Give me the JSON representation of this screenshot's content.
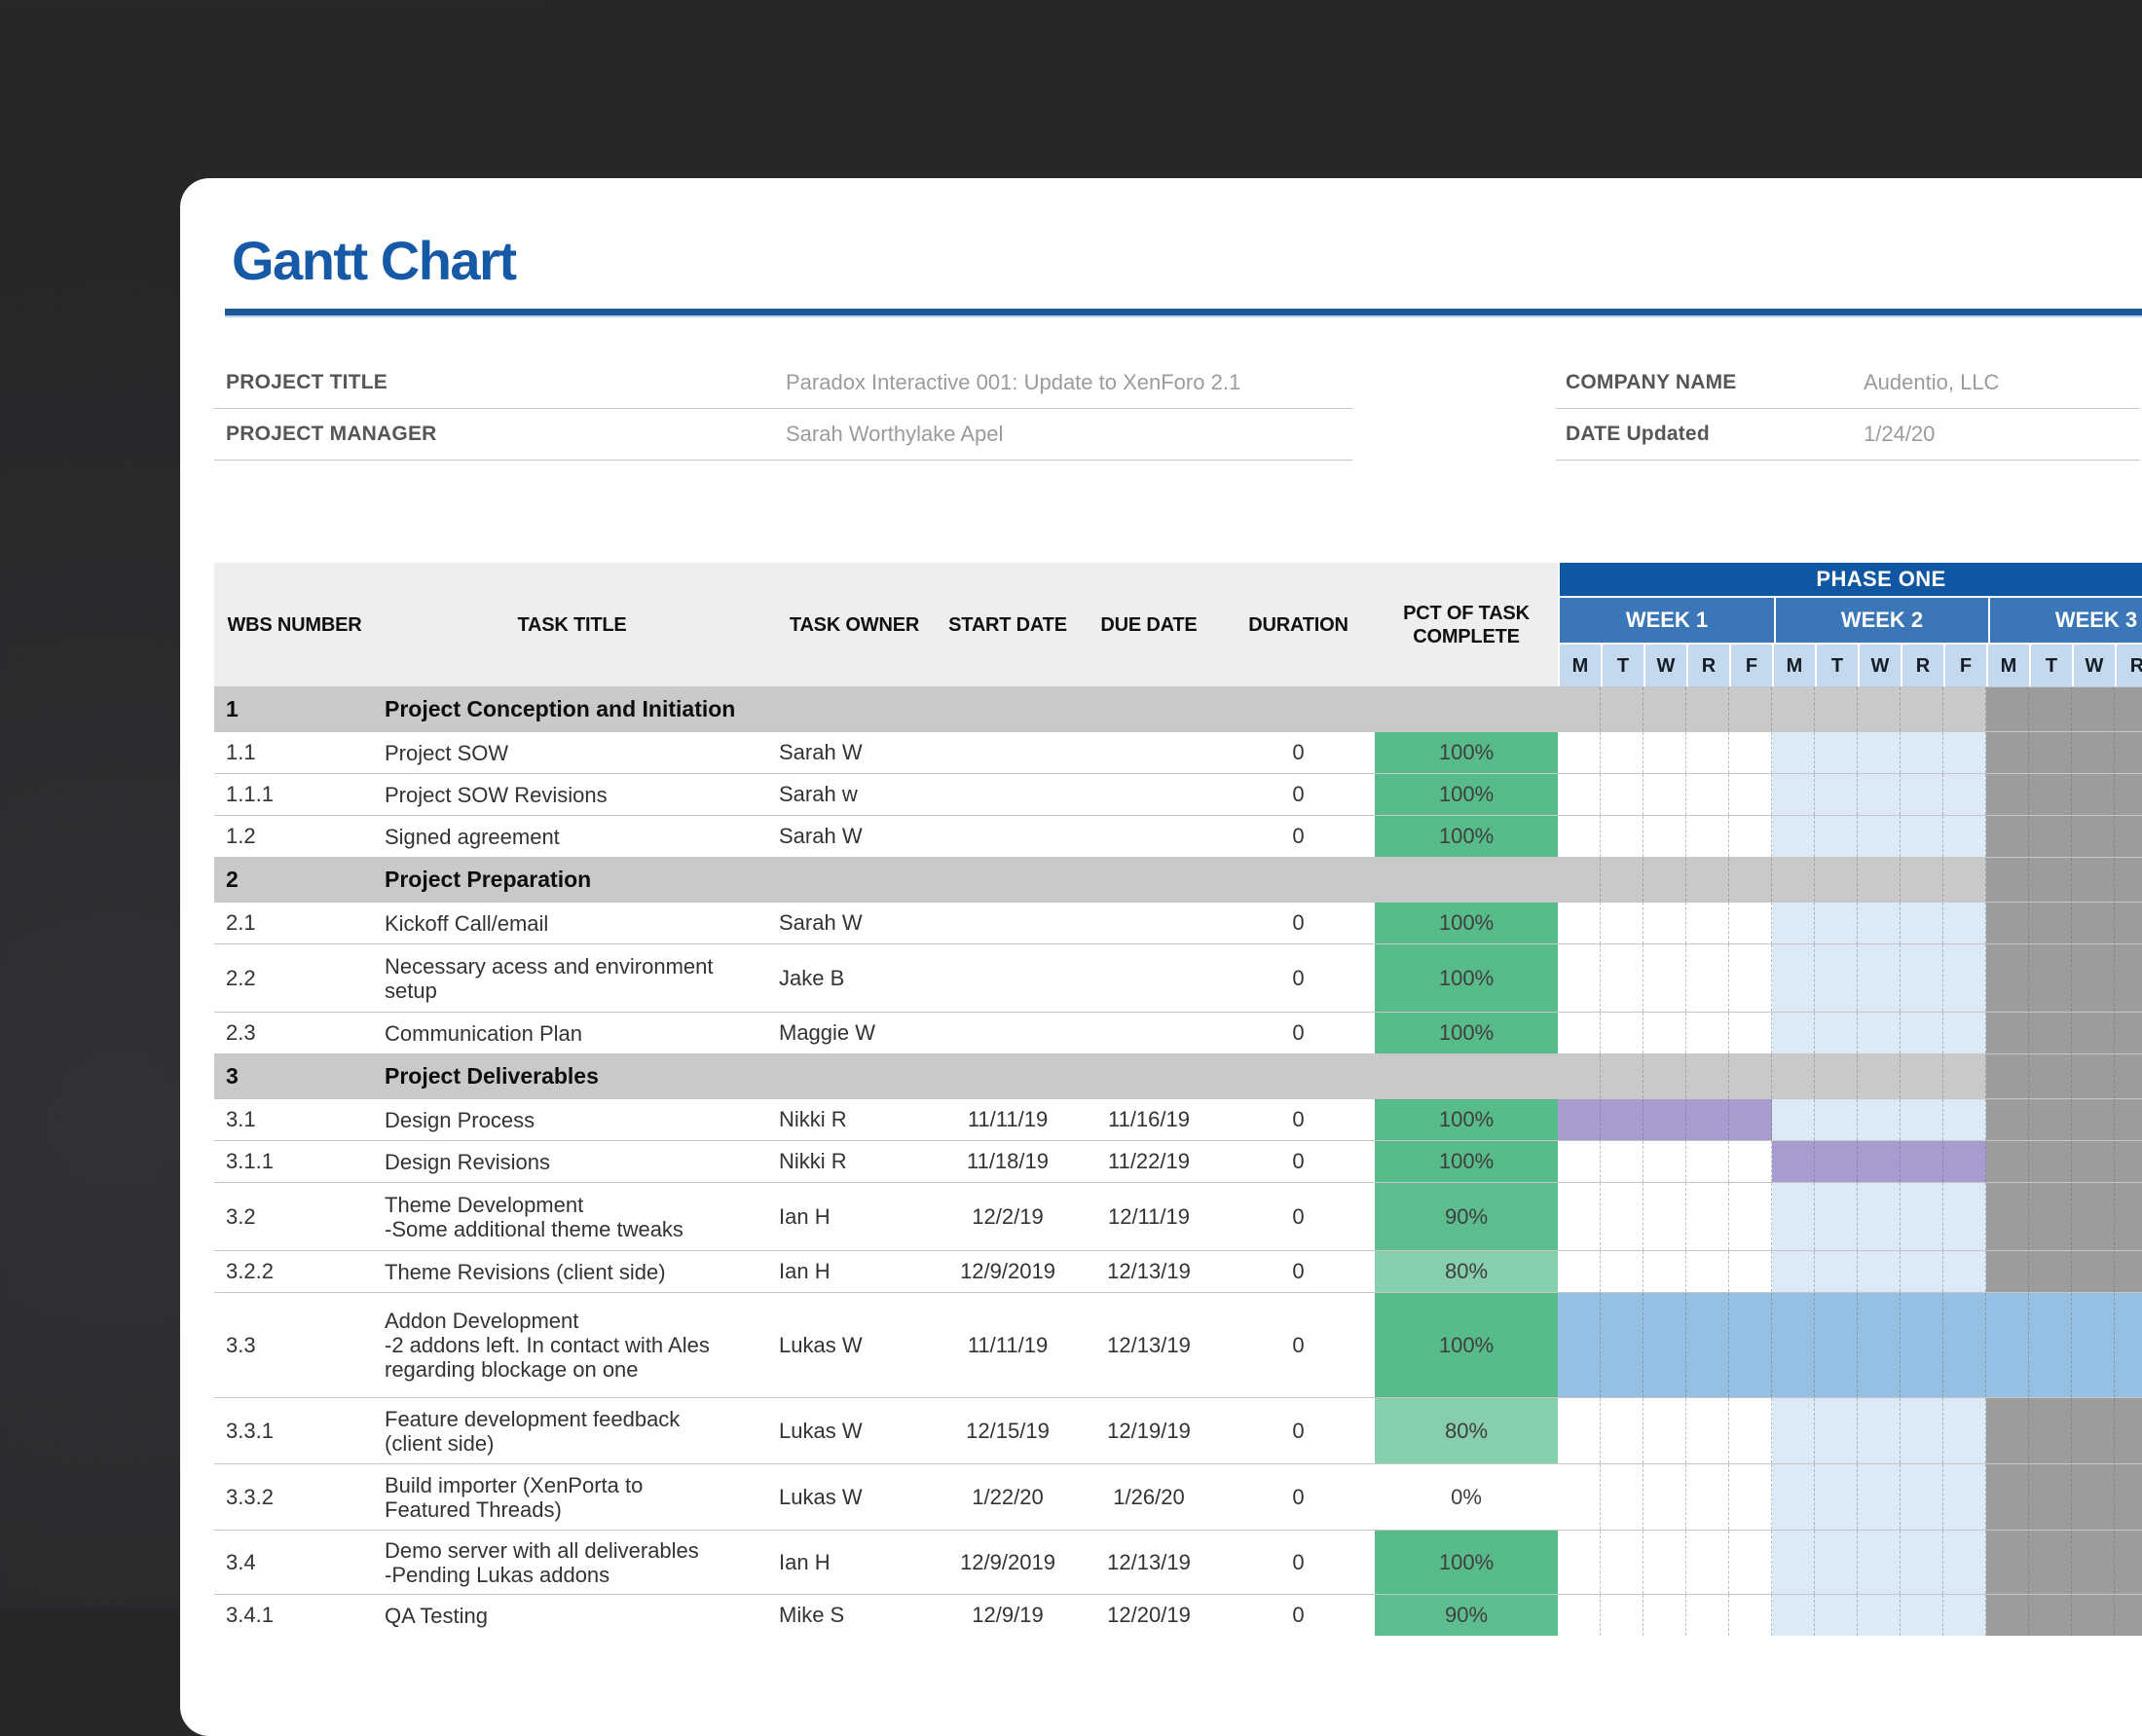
{
  "page": {
    "heading": "Gantt Chart"
  },
  "colors": {
    "heading_blue": "#1659a6",
    "rule_blue": "#1c5899",
    "phase_bg": "#0f57a2",
    "week_bg": "#3b76b7",
    "day_bg": "#c5d9ee",
    "header_bg": "#eeeeee",
    "section_bg": "#c9c9c9",
    "pct_green_full": "#57bb8a",
    "pct_green_light": "#87ceac",
    "gantt_week_band": "#dce9f6",
    "gantt_dim_gray": "#9c9c9c",
    "gantt_purple": "#a89bd0",
    "gantt_blue": "#94c1e3"
  },
  "meta": {
    "left": [
      {
        "label": "PROJECT TITLE",
        "value": "Paradox Interactive 001: Update to XenForo 2.1"
      },
      {
        "label": "PROJECT MANAGER",
        "value": "Sarah Worthylake Apel"
      }
    ],
    "right": [
      {
        "label": "COMPANY NAME",
        "value": "Audentio, LLC"
      },
      {
        "label": "DATE Updated",
        "value": "1/24/20"
      }
    ]
  },
  "gantt": {
    "phase_label": "PHASE ONE",
    "weeks": [
      "WEEK 1",
      "WEEK 2",
      "WEEK 3"
    ],
    "days": [
      "M",
      "T",
      "W",
      "R",
      "F"
    ],
    "palette": {
      "white": "#ffffff",
      "band": "#dce9f6",
      "dim": "#9c9c9c",
      "purple": "#a89bd0",
      "blue": "#94c1e3",
      "section": "#c9c9c9",
      "full": "#57bb8a",
      "high": "#5dbd8e",
      "mid": "#87ceac",
      "none": "#ffffff"
    }
  },
  "table": {
    "columns": [
      "WBS NUMBER",
      "TASK TITLE",
      "TASK OWNER",
      "START DATE",
      "DUE DATE",
      "DURATION",
      "PCT OF TASK COMPLETE"
    ],
    "rows": [
      {
        "type": "section",
        "wbs": "1",
        "title": "Project Conception and Initiation",
        "h": 46,
        "gantt": [
          "section",
          "section",
          "dim"
        ]
      },
      {
        "type": "task",
        "wbs": "1.1",
        "title": "Project SOW",
        "owner": "Sarah W",
        "start": "",
        "due": "",
        "duration": "0",
        "pct": "100%",
        "pct_level": "full",
        "h": 43,
        "gantt": [
          "white",
          "band",
          "dim"
        ]
      },
      {
        "type": "task",
        "wbs": "1.1.1",
        "title": "Project SOW Revisions",
        "owner": "Sarah w",
        "start": "",
        "due": "",
        "duration": "0",
        "pct": "100%",
        "pct_level": "full",
        "h": 43,
        "gantt": [
          "white",
          "band",
          "dim"
        ]
      },
      {
        "type": "task",
        "wbs": "1.2",
        "title": "Signed agreement",
        "owner": "Sarah W",
        "start": "",
        "due": "",
        "duration": "0",
        "pct": "100%",
        "pct_level": "full",
        "h": 43,
        "gantt": [
          "white",
          "band",
          "dim"
        ]
      },
      {
        "type": "section",
        "wbs": "2",
        "title": "Project Preparation",
        "h": 46,
        "gantt": [
          "section",
          "section",
          "dim"
        ]
      },
      {
        "type": "task",
        "wbs": "2.1",
        "title": "Kickoff Call/email",
        "owner": "Sarah W",
        "start": "",
        "due": "",
        "duration": "0",
        "pct": "100%",
        "pct_level": "full",
        "h": 43,
        "gantt": [
          "white",
          "band",
          "dim"
        ]
      },
      {
        "type": "task",
        "wbs": "2.2",
        "title": [
          "Necessary acess and environment",
          "setup"
        ],
        "owner": "Jake B",
        "start": "",
        "due": "",
        "duration": "0",
        "pct": "100%",
        "pct_level": "full",
        "h": 70,
        "gantt": [
          "white",
          "band",
          "dim"
        ]
      },
      {
        "type": "task",
        "wbs": "2.3",
        "title": "Communication Plan",
        "owner": "Maggie W",
        "start": "",
        "due": "",
        "duration": "0",
        "pct": "100%",
        "pct_level": "full",
        "h": 43,
        "gantt": [
          "white",
          "band",
          "dim"
        ]
      },
      {
        "type": "section",
        "wbs": "3",
        "title": "Project Deliverables",
        "h": 46,
        "gantt": [
          "section",
          "section",
          "dim"
        ]
      },
      {
        "type": "task",
        "wbs": "3.1",
        "title": "Design Process",
        "owner": "Nikki R",
        "start": "11/11/19",
        "due": "11/16/19",
        "duration": "0",
        "pct": "100%",
        "pct_level": "full",
        "h": 43,
        "gantt": [
          "purple",
          "band",
          "dim"
        ]
      },
      {
        "type": "task",
        "wbs": "3.1.1",
        "title": "Design Revisions",
        "owner": "Nikki R",
        "start": "11/18/19",
        "due": "11/22/19",
        "duration": "0",
        "pct": "100%",
        "pct_level": "full",
        "h": 43,
        "gantt": [
          "white",
          "purple",
          "dim"
        ]
      },
      {
        "type": "task",
        "wbs": "3.2",
        "title": [
          "Theme Development",
          "-Some additional theme tweaks"
        ],
        "owner": "Ian H",
        "start": "12/2/19",
        "due": "12/11/19",
        "duration": "0",
        "pct": "90%",
        "pct_level": "high",
        "h": 70,
        "gantt": [
          "white",
          "band",
          "dim"
        ]
      },
      {
        "type": "task",
        "wbs": "3.2.2",
        "title": "Theme Revisions (client side)",
        "owner": "Ian H",
        "start": "12/9/2019",
        "due": "12/13/19",
        "duration": "0",
        "pct": "80%",
        "pct_level": "mid",
        "h": 43,
        "gantt": [
          "white",
          "band",
          "dim"
        ]
      },
      {
        "type": "task",
        "wbs": "3.3",
        "title": [
          "Addon Development",
          "-2 addons left. In contact with Ales",
          "regarding blockage on one"
        ],
        "owner": "Lukas W",
        "start": "11/11/19",
        "due": "12/13/19",
        "duration": "0",
        "pct": "100%",
        "pct_level": "full",
        "h": 108,
        "gantt": [
          "blue",
          "blue",
          "blue"
        ]
      },
      {
        "type": "task",
        "wbs": "3.3.1",
        "title": [
          "Feature development feedback",
          "(client side)"
        ],
        "owner": "Lukas W",
        "start": "12/15/19",
        "due": "12/19/19",
        "duration": "0",
        "pct": "80%",
        "pct_level": "mid",
        "h": 68,
        "gantt": [
          "white",
          "band",
          "dim"
        ]
      },
      {
        "type": "task",
        "wbs": "3.3.2",
        "title": [
          "Build importer (XenPorta to",
          "Featured Threads)"
        ],
        "owner": "Lukas W",
        "start": "1/22/20",
        "due": "1/26/20",
        "duration": "0",
        "pct": "0%",
        "pct_level": "none",
        "h": 68,
        "gantt": [
          "white",
          "band",
          "dim"
        ]
      },
      {
        "type": "task",
        "wbs": "3.4",
        "title": [
          "Demo server with all deliverables",
          "-Pending Lukas addons"
        ],
        "owner": "Ian H",
        "start": "12/9/2019",
        "due": "12/13/19",
        "duration": "0",
        "pct": "100%",
        "pct_level": "full",
        "h": 66,
        "gantt": [
          "white",
          "band",
          "dim"
        ]
      },
      {
        "type": "task",
        "wbs": "3.4.1",
        "title": "QA Testing",
        "owner": "Mike S",
        "start": "12/9/19",
        "due": "12/20/19",
        "duration": "0",
        "pct": "90%",
        "pct_level": "high",
        "h": 43,
        "gantt": [
          "white",
          "band",
          "dim"
        ]
      }
    ]
  }
}
